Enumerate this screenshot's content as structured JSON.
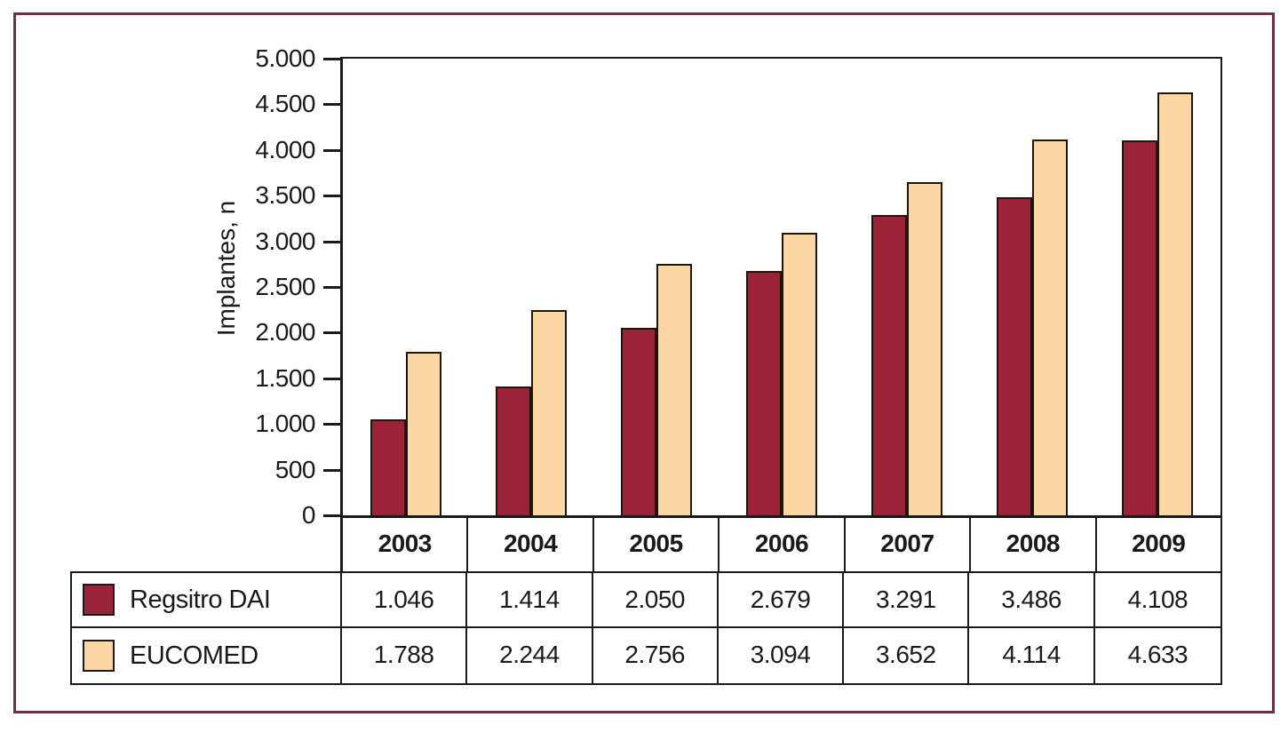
{
  "figure": {
    "frame_color": "#6f3045",
    "background": "#ffffff",
    "line_color": "#1a1a1a"
  },
  "chart_data": {
    "type": "bar",
    "title": "",
    "xlabel": "",
    "ylabel": "Implantes, n",
    "categories": [
      "2003",
      "2004",
      "2005",
      "2006",
      "2007",
      "2008",
      "2009"
    ],
    "series": [
      {
        "name": "Regsitro DAI",
        "color": "#9a2239",
        "values": [
          1046,
          1414,
          2050,
          2679,
          3291,
          3486,
          4108
        ],
        "labels": [
          "1.046",
          "1.414",
          "2.050",
          "2.679",
          "3.291",
          "3.486",
          "4.108"
        ]
      },
      {
        "name": "EUCOMED",
        "color": "#fcd7a3",
        "values": [
          1788,
          2244,
          2756,
          3094,
          3652,
          4114,
          4633
        ],
        "labels": [
          "1.788",
          "2.244",
          "2.756",
          "3.094",
          "3.652",
          "4.114",
          "4.633"
        ]
      }
    ],
    "ylim": [
      0,
      5000
    ],
    "yticks": [
      {
        "value": 0,
        "label": "0"
      },
      {
        "value": 500,
        "label": "500"
      },
      {
        "value": 1000,
        "label": "1.000"
      },
      {
        "value": 1500,
        "label": "1.500"
      },
      {
        "value": 2000,
        "label": "2.000"
      },
      {
        "value": 2500,
        "label": "2.500"
      },
      {
        "value": 3000,
        "label": "3.000"
      },
      {
        "value": 3500,
        "label": "3.500"
      },
      {
        "value": 4000,
        "label": "4.000"
      },
      {
        "value": 4500,
        "label": "4.500"
      },
      {
        "value": 5000,
        "label": "5.000"
      }
    ],
    "grid": false,
    "legend_position": "table-left-column"
  }
}
